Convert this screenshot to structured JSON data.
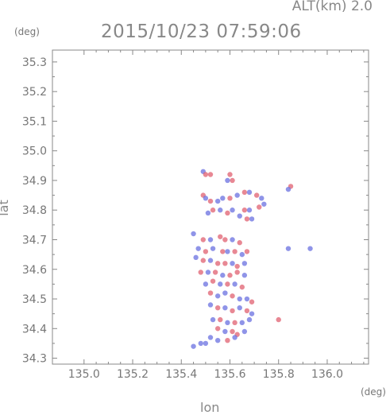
{
  "header": {
    "altitude": "ALT(km) 2.0",
    "timestamp": "2015/10/23 07:59:06"
  },
  "chart_data": {
    "type": "scatter",
    "title": "2015/10/23 07:59:06",
    "xlabel": "lon",
    "ylabel": "lat",
    "x_unit": "(deg)",
    "y_unit": "(deg)",
    "xlim": [
      134.87,
      136.17
    ],
    "ylim": [
      34.28,
      35.34
    ],
    "xticks": [
      135.0,
      135.2,
      135.4,
      135.6,
      135.8,
      136.0
    ],
    "xtick_labels": [
      "135.0",
      "135.2",
      "135.4",
      "135.6",
      "135.8",
      "136.0"
    ],
    "yticks": [
      34.3,
      34.4,
      34.5,
      34.6,
      34.7,
      34.8,
      34.9,
      35.0,
      35.1,
      35.2,
      35.3
    ],
    "ytick_labels": [
      "34.3",
      "34.4",
      "34.5",
      "34.6",
      "34.7",
      "34.8",
      "34.9",
      "35.0",
      "35.1",
      "35.2",
      "35.3"
    ],
    "grid": false,
    "colors": {
      "positive": "#e06070",
      "negative": "#6a70e0",
      "axis": "#888888"
    },
    "points": [
      {
        "x": 135.49,
        "y": 34.93,
        "s": "neg"
      },
      {
        "x": 135.5,
        "y": 34.92,
        "s": "pos"
      },
      {
        "x": 135.52,
        "y": 34.92,
        "s": "pos"
      },
      {
        "x": 135.6,
        "y": 34.92,
        "s": "pos"
      },
      {
        "x": 135.61,
        "y": 34.9,
        "s": "pos"
      },
      {
        "x": 135.59,
        "y": 34.9,
        "s": "neg"
      },
      {
        "x": 135.85,
        "y": 34.88,
        "s": "pos"
      },
      {
        "x": 135.84,
        "y": 34.87,
        "s": "neg"
      },
      {
        "x": 135.49,
        "y": 34.85,
        "s": "pos"
      },
      {
        "x": 135.5,
        "y": 34.84,
        "s": "neg"
      },
      {
        "x": 135.52,
        "y": 34.83,
        "s": "pos"
      },
      {
        "x": 135.55,
        "y": 34.83,
        "s": "neg"
      },
      {
        "x": 135.57,
        "y": 34.84,
        "s": "neg"
      },
      {
        "x": 135.6,
        "y": 34.84,
        "s": "pos"
      },
      {
        "x": 135.63,
        "y": 34.85,
        "s": "neg"
      },
      {
        "x": 135.66,
        "y": 34.86,
        "s": "pos"
      },
      {
        "x": 135.68,
        "y": 34.86,
        "s": "neg"
      },
      {
        "x": 135.71,
        "y": 34.85,
        "s": "pos"
      },
      {
        "x": 135.73,
        "y": 34.84,
        "s": "neg"
      },
      {
        "x": 135.74,
        "y": 34.82,
        "s": "neg"
      },
      {
        "x": 135.72,
        "y": 34.81,
        "s": "pos"
      },
      {
        "x": 135.68,
        "y": 34.8,
        "s": "neg"
      },
      {
        "x": 135.66,
        "y": 34.8,
        "s": "pos"
      },
      {
        "x": 135.61,
        "y": 34.8,
        "s": "neg"
      },
      {
        "x": 135.59,
        "y": 34.79,
        "s": "pos"
      },
      {
        "x": 135.56,
        "y": 34.8,
        "s": "neg"
      },
      {
        "x": 135.53,
        "y": 34.8,
        "s": "pos"
      },
      {
        "x": 135.51,
        "y": 34.79,
        "s": "neg"
      },
      {
        "x": 135.64,
        "y": 34.78,
        "s": "neg"
      },
      {
        "x": 135.67,
        "y": 34.77,
        "s": "pos"
      },
      {
        "x": 135.69,
        "y": 34.77,
        "s": "neg"
      },
      {
        "x": 135.45,
        "y": 34.72,
        "s": "neg"
      },
      {
        "x": 135.49,
        "y": 34.7,
        "s": "pos"
      },
      {
        "x": 135.52,
        "y": 34.7,
        "s": "neg"
      },
      {
        "x": 135.56,
        "y": 34.71,
        "s": "pos"
      },
      {
        "x": 135.58,
        "y": 34.7,
        "s": "pos"
      },
      {
        "x": 135.61,
        "y": 34.7,
        "s": "neg"
      },
      {
        "x": 135.64,
        "y": 34.69,
        "s": "pos"
      },
      {
        "x": 135.47,
        "y": 34.67,
        "s": "neg"
      },
      {
        "x": 135.5,
        "y": 34.66,
        "s": "pos"
      },
      {
        "x": 135.53,
        "y": 34.67,
        "s": "neg"
      },
      {
        "x": 135.57,
        "y": 34.66,
        "s": "pos"
      },
      {
        "x": 135.59,
        "y": 34.66,
        "s": "neg"
      },
      {
        "x": 135.62,
        "y": 34.66,
        "s": "pos"
      },
      {
        "x": 135.65,
        "y": 34.65,
        "s": "neg"
      },
      {
        "x": 135.67,
        "y": 34.66,
        "s": "pos"
      },
      {
        "x": 135.84,
        "y": 34.67,
        "s": "neg"
      },
      {
        "x": 135.93,
        "y": 34.67,
        "s": "neg"
      },
      {
        "x": 135.46,
        "y": 34.64,
        "s": "neg"
      },
      {
        "x": 135.49,
        "y": 34.63,
        "s": "pos"
      },
      {
        "x": 135.52,
        "y": 34.63,
        "s": "neg"
      },
      {
        "x": 135.55,
        "y": 34.62,
        "s": "pos"
      },
      {
        "x": 135.58,
        "y": 34.62,
        "s": "pos"
      },
      {
        "x": 135.61,
        "y": 34.62,
        "s": "neg"
      },
      {
        "x": 135.63,
        "y": 34.61,
        "s": "pos"
      },
      {
        "x": 135.66,
        "y": 34.62,
        "s": "neg"
      },
      {
        "x": 135.48,
        "y": 34.59,
        "s": "pos"
      },
      {
        "x": 135.51,
        "y": 34.59,
        "s": "neg"
      },
      {
        "x": 135.54,
        "y": 34.59,
        "s": "pos"
      },
      {
        "x": 135.57,
        "y": 34.58,
        "s": "neg"
      },
      {
        "x": 135.6,
        "y": 34.58,
        "s": "pos"
      },
      {
        "x": 135.63,
        "y": 34.59,
        "s": "pos"
      },
      {
        "x": 135.66,
        "y": 34.58,
        "s": "neg"
      },
      {
        "x": 135.5,
        "y": 34.55,
        "s": "neg"
      },
      {
        "x": 135.53,
        "y": 34.56,
        "s": "pos"
      },
      {
        "x": 135.56,
        "y": 34.55,
        "s": "neg"
      },
      {
        "x": 135.59,
        "y": 34.55,
        "s": "pos"
      },
      {
        "x": 135.62,
        "y": 34.55,
        "s": "neg"
      },
      {
        "x": 135.65,
        "y": 34.54,
        "s": "pos"
      },
      {
        "x": 135.52,
        "y": 34.52,
        "s": "pos"
      },
      {
        "x": 135.55,
        "y": 34.51,
        "s": "neg"
      },
      {
        "x": 135.58,
        "y": 34.52,
        "s": "neg"
      },
      {
        "x": 135.61,
        "y": 34.51,
        "s": "pos"
      },
      {
        "x": 135.64,
        "y": 34.5,
        "s": "neg"
      },
      {
        "x": 135.67,
        "y": 34.5,
        "s": "neg"
      },
      {
        "x": 135.69,
        "y": 34.49,
        "s": "pos"
      },
      {
        "x": 135.52,
        "y": 34.48,
        "s": "neg"
      },
      {
        "x": 135.55,
        "y": 34.47,
        "s": "pos"
      },
      {
        "x": 135.58,
        "y": 34.47,
        "s": "neg"
      },
      {
        "x": 135.61,
        "y": 34.46,
        "s": "pos"
      },
      {
        "x": 135.64,
        "y": 34.47,
        "s": "neg"
      },
      {
        "x": 135.67,
        "y": 34.46,
        "s": "pos"
      },
      {
        "x": 135.69,
        "y": 34.45,
        "s": "neg"
      },
      {
        "x": 135.53,
        "y": 34.43,
        "s": "neg"
      },
      {
        "x": 135.56,
        "y": 34.43,
        "s": "pos"
      },
      {
        "x": 135.59,
        "y": 34.42,
        "s": "neg"
      },
      {
        "x": 135.62,
        "y": 34.42,
        "s": "pos"
      },
      {
        "x": 135.65,
        "y": 34.42,
        "s": "neg"
      },
      {
        "x": 135.68,
        "y": 34.43,
        "s": "neg"
      },
      {
        "x": 135.55,
        "y": 34.4,
        "s": "pos"
      },
      {
        "x": 135.58,
        "y": 34.39,
        "s": "neg"
      },
      {
        "x": 135.61,
        "y": 34.39,
        "s": "pos"
      },
      {
        "x": 135.63,
        "y": 34.38,
        "s": "pos"
      },
      {
        "x": 135.66,
        "y": 34.39,
        "s": "neg"
      },
      {
        "x": 135.52,
        "y": 34.37,
        "s": "neg"
      },
      {
        "x": 135.55,
        "y": 34.36,
        "s": "neg"
      },
      {
        "x": 135.59,
        "y": 34.36,
        "s": "pos"
      },
      {
        "x": 135.62,
        "y": 34.37,
        "s": "neg"
      },
      {
        "x": 135.48,
        "y": 34.35,
        "s": "neg"
      },
      {
        "x": 135.45,
        "y": 34.34,
        "s": "neg"
      },
      {
        "x": 135.5,
        "y": 34.35,
        "s": "neg"
      },
      {
        "x": 135.8,
        "y": 34.43,
        "s": "pos"
      }
    ]
  }
}
